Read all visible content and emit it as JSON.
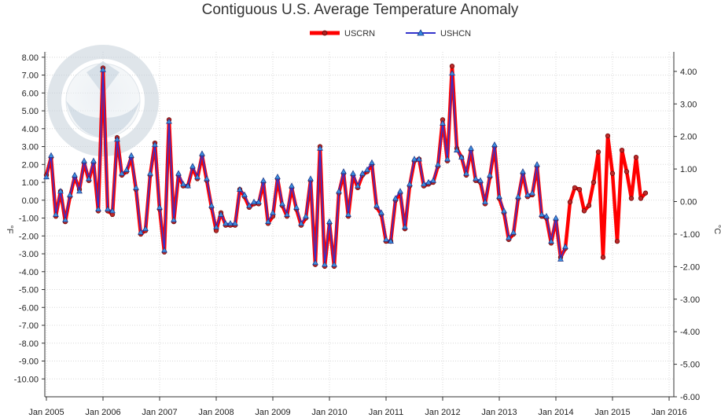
{
  "chart_data": {
    "type": "line",
    "title": "Contiguous U.S. Average Temperature Anomaly",
    "ylabel_left": "°F",
    "ylabel_right": "°C",
    "ylim_left": [
      -11,
      8.3
    ],
    "ylim_right": [
      -6,
      4.6
    ],
    "yticks_left": [
      "8.00",
      "7.00",
      "6.00",
      "5.00",
      "4.00",
      "3.00",
      "2.00",
      "1.00",
      "0.00",
      "-1.00",
      "-2.00",
      "-3.00",
      "-4.00",
      "-5.00",
      "-6.00",
      "-7.00",
      "-8.00",
      "-9.00",
      "-10.00"
    ],
    "yticks_left_values": [
      8,
      7,
      6,
      5,
      4,
      3,
      2,
      1,
      0,
      -1,
      -2,
      -3,
      -4,
      -5,
      -6,
      -7,
      -8,
      -9,
      -10
    ],
    "yticks_right": [
      "4.00",
      "3.00",
      "2.00",
      "1.00",
      "0.00",
      "-1.00",
      "-2.00",
      "-3.00",
      "-4.00",
      "-5.00",
      "-6.00"
    ],
    "yticks_right_values": [
      4,
      3,
      2,
      1,
      0,
      -1,
      -2,
      -3,
      -4,
      -5,
      -6
    ],
    "xticks": [
      "Jan 2005",
      "Jan 2006",
      "Jan 2007",
      "Jan 2008",
      "Jan 2009",
      "Jan 2010",
      "Jan 2011",
      "Jan 2012",
      "Jan 2013",
      "Jan 2014",
      "Jan 2015",
      "Jan 2016"
    ],
    "x_start": "Jan 2005",
    "grid": true,
    "legend_position": "top-center",
    "series": [
      {
        "name": "USCRN",
        "color": "#ff0000",
        "marker": "circle",
        "values": [
          1.4,
          2.4,
          -0.9,
          0.5,
          -1.2,
          0.2,
          1.3,
          0.6,
          2.1,
          1.1,
          2.1,
          -0.6,
          7.4,
          -0.6,
          -0.8,
          3.5,
          1.4,
          1.6,
          2.4,
          0.6,
          -1.9,
          -1.7,
          1.4,
          3.2,
          -0.5,
          -2.9,
          4.5,
          -1.2,
          1.4,
          0.8,
          0.8,
          1.8,
          1.2,
          2.5,
          1.1,
          -0.4,
          -1.7,
          -0.7,
          -1.4,
          -1.4,
          -1.4,
          0.6,
          0.2,
          -0.4,
          -0.2,
          -0.2,
          1.0,
          -1.3,
          -0.9,
          1.2,
          -0.3,
          -0.9,
          0.7,
          -0.5,
          -1.4,
          -1.0,
          1.1,
          -3.6,
          3.0,
          -3.7,
          -1.3,
          -3.7,
          0.4,
          1.5,
          -0.9,
          1.4,
          0.7,
          1.4,
          1.6,
          2.0,
          -0.4,
          -0.8,
          -2.3,
          -2.3,
          0.0,
          0.4,
          -1.6,
          0.8,
          2.2,
          2.3,
          0.8,
          0.9,
          1.0,
          1.9,
          4.5,
          2.2,
          7.5,
          2.9,
          2.4,
          1.4,
          2.8,
          1.1,
          1.0,
          -0.2,
          1.3,
          3.0,
          0.1,
          -0.7,
          -2.2,
          -1.9,
          0.1,
          1.5,
          0.2,
          0.3,
          1.9,
          -0.9,
          -1.0,
          -2.4,
          -1.1,
          -3.2,
          -2.7,
          -0.1,
          0.7,
          0.6,
          -0.6,
          -0.3,
          1.0,
          2.7,
          -3.2,
          3.6,
          1.5,
          -2.3,
          2.8,
          1.6,
          0.1,
          2.4,
          0.1,
          0.4
        ]
      },
      {
        "name": "USHCN",
        "color": "#3333cc",
        "marker": "triangle",
        "values": [
          1.3,
          2.5,
          -0.8,
          0.5,
          -1.1,
          0.3,
          1.4,
          0.5,
          2.2,
          1.2,
          2.2,
          -0.5,
          7.3,
          -0.5,
          -0.6,
          3.4,
          1.5,
          1.7,
          2.5,
          0.7,
          -1.8,
          -1.6,
          1.5,
          3.1,
          -0.4,
          -2.8,
          4.4,
          -1.1,
          1.5,
          0.9,
          0.8,
          1.9,
          1.3,
          2.6,
          1.2,
          -0.3,
          -1.5,
          -0.8,
          -1.3,
          -1.3,
          -1.3,
          0.6,
          0.3,
          -0.3,
          -0.1,
          -0.1,
          1.1,
          -1.2,
          -0.7,
          1.3,
          -0.2,
          -0.8,
          0.8,
          -0.4,
          -1.3,
          -0.9,
          1.2,
          -3.5,
          2.9,
          -3.6,
          -1.2,
          -3.6,
          0.5,
          1.6,
          -0.8,
          1.5,
          0.8,
          1.5,
          1.7,
          2.1,
          -0.3,
          -0.7,
          -2.2,
          -2.3,
          0.1,
          0.5,
          -1.5,
          0.9,
          2.3,
          2.3,
          0.9,
          1.0,
          1.1,
          2.0,
          4.3,
          2.3,
          7.1,
          2.8,
          2.4,
          1.5,
          2.9,
          1.2,
          1.1,
          -0.1,
          1.4,
          3.1,
          0.2,
          -0.6,
          -2.1,
          -1.8,
          0.2,
          1.6,
          0.3,
          0.4,
          2.0,
          -0.8,
          -0.9,
          -2.3,
          -1.0,
          -3.3,
          -2.6
        ]
      }
    ]
  }
}
